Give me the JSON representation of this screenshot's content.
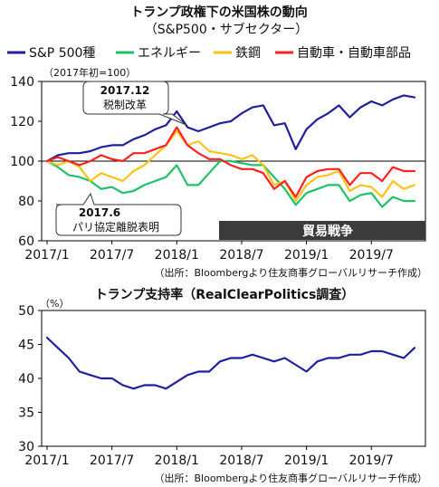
{
  "colors": {
    "sp500": "#1f1f9e",
    "energy": "#1fc06a",
    "steel": "#f7c21a",
    "auto": "#ff2020",
    "approval": "#1f1f9e",
    "callout_fill": "#ffffff",
    "trade_war_box": "#3b3b3b"
  },
  "chart_data": [
    {
      "type": "line",
      "title": "トランプ政権下の米国株の動向",
      "subtitle": "（S&P500・サブセクター）",
      "unit_label": "（2017年初=100）",
      "source": "（出所：Bloombergより住友商事グローバルリサーチ作成）",
      "x_ticks": [
        "2017/1",
        "2017/7",
        "2018/1",
        "2018/7",
        "2019/1",
        "2019/7"
      ],
      "x": [
        "2017/1",
        "2017/2",
        "2017/3",
        "2017/4",
        "2017/5",
        "2017/6",
        "2017/7",
        "2017/8",
        "2017/9",
        "2017/10",
        "2017/11",
        "2017/12",
        "2018/1",
        "2018/2",
        "2018/3",
        "2018/4",
        "2018/5",
        "2018/6",
        "2018/7",
        "2018/8",
        "2018/9",
        "2018/10",
        "2018/11",
        "2018/12",
        "2019/1",
        "2019/2",
        "2019/3",
        "2019/4",
        "2019/5",
        "2019/6",
        "2019/7",
        "2019/8",
        "2019/9",
        "2019/10",
        "2019/11"
      ],
      "ylim": [
        60,
        140
      ],
      "y_ticks": [
        60,
        80,
        100,
        120,
        140
      ],
      "reference_line": 100,
      "legend": [
        {
          "key": "sp500",
          "label": "S&P 500種"
        },
        {
          "key": "energy",
          "label": "エネルギー"
        },
        {
          "key": "steel",
          "label": "鉄鋼"
        },
        {
          "key": "auto",
          "label": "自動車・自動車部品"
        }
      ],
      "series": [
        {
          "key": "sp500",
          "name": "S&P 500種",
          "values": [
            100,
            103,
            104,
            104,
            105,
            107,
            108,
            108,
            111,
            113,
            116,
            118,
            125,
            117,
            115,
            117,
            119,
            120,
            124,
            127,
            128,
            118,
            119,
            106,
            116,
            121,
            124,
            128,
            122,
            127,
            130,
            128,
            131,
            133,
            132
          ]
        },
        {
          "key": "energy",
          "name": "エネルギー",
          "values": [
            100,
            97,
            93,
            92,
            90,
            86,
            87,
            84,
            85,
            88,
            90,
            92,
            98,
            88,
            88,
            94,
            100,
            100,
            99,
            98,
            98,
            92,
            86,
            78,
            84,
            86,
            88,
            88,
            80,
            83,
            84,
            77,
            82,
            80,
            80
          ]
        },
        {
          "key": "steel",
          "name": "鉄鋼",
          "values": [
            100,
            98,
            100,
            97,
            90,
            94,
            92,
            90,
            95,
            98,
            103,
            108,
            115,
            108,
            110,
            105,
            104,
            103,
            101,
            103,
            98,
            88,
            90,
            80,
            88,
            92,
            93,
            95,
            85,
            88,
            87,
            82,
            90,
            86,
            88
          ]
        },
        {
          "key": "auto",
          "name": "自動車・自動車部品",
          "values": [
            100,
            102,
            100,
            98,
            100,
            103,
            101,
            100,
            104,
            104,
            106,
            108,
            117,
            108,
            104,
            101,
            101,
            98,
            96,
            96,
            94,
            86,
            90,
            82,
            92,
            95,
            96,
            96,
            88,
            94,
            94,
            90,
            97,
            95,
            95
          ]
        }
      ],
      "annotations": [
        {
          "date": "2017.12",
          "label": "税制改革"
        },
        {
          "date": "2017.6",
          "label": "パリ協定離脱表明"
        }
      ],
      "band": {
        "label": "貿易戦争"
      }
    },
    {
      "type": "line",
      "title": "トランプ支持率（RealClearPolitics調査）",
      "unit_label": "（%）",
      "source": "（出所：Bloombergより住友商事グローバルリサーチ作成）",
      "x_ticks": [
        "2017/1",
        "2017/7",
        "2018/1",
        "2018/7",
        "2019/1",
        "2019/7"
      ],
      "x": [
        "2017/1",
        "2017/2",
        "2017/3",
        "2017/4",
        "2017/5",
        "2017/6",
        "2017/7",
        "2017/8",
        "2017/9",
        "2017/10",
        "2017/11",
        "2017/12",
        "2018/1",
        "2018/2",
        "2018/3",
        "2018/4",
        "2018/5",
        "2018/6",
        "2018/7",
        "2018/8",
        "2018/9",
        "2018/10",
        "2018/11",
        "2018/12",
        "2019/1",
        "2019/2",
        "2019/3",
        "2019/4",
        "2019/5",
        "2019/6",
        "2019/7",
        "2019/8",
        "2019/9",
        "2019/10",
        "2019/11"
      ],
      "ylim": [
        30,
        50
      ],
      "y_ticks": [
        30,
        35,
        40,
        45,
        50
      ],
      "series": [
        {
          "key": "approval",
          "name": "",
          "values": [
            46,
            44.5,
            43,
            41,
            40.5,
            40,
            40,
            39,
            38.5,
            39,
            39,
            38.5,
            39.5,
            40.5,
            41,
            41,
            42.5,
            43,
            43,
            43.5,
            43,
            42.5,
            43,
            42,
            41,
            42.5,
            43,
            43,
            43.5,
            43.5,
            44,
            44,
            43.5,
            43,
            44.5
          ]
        }
      ]
    }
  ]
}
